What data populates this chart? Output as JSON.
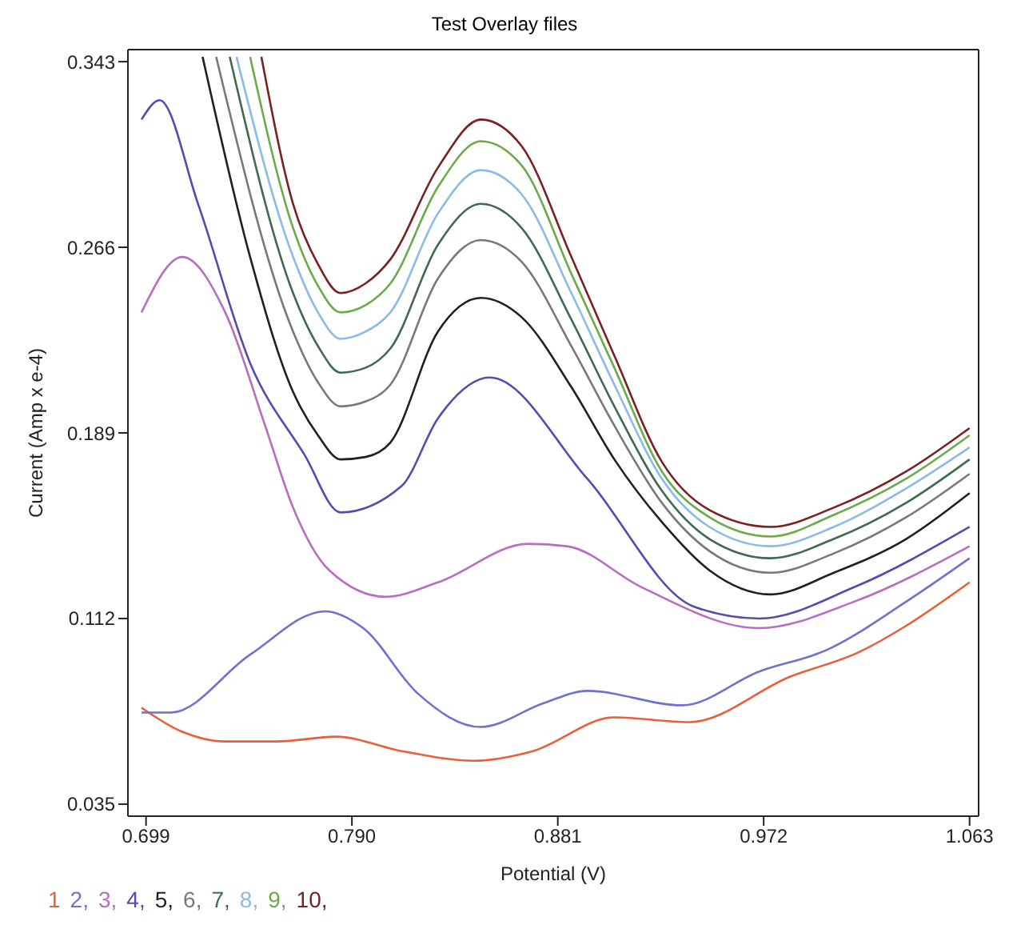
{
  "chart_data": {
    "type": "line",
    "title": "Test Overlay files",
    "xlabel": "Potential (V)",
    "ylabel": "Current (Amp x e-4)",
    "xlim": [
      0.691,
      1.067
    ],
    "xticks": [
      0.699,
      {
        "value": 0.79,
        "label": "0.790"
      },
      0.881,
      0.972,
      1.063
    ],
    "ylim": [
      0.03,
      0.348
    ],
    "yticks": [
      0.343,
      0.266,
      0.189,
      0.112,
      0.035
    ],
    "grid": false,
    "legend": "bottom left",
    "marker": "none",
    "line_style": "solid",
    "series": [
      {
        "name": "1",
        "color": "#e8603a",
        "x": [
          0.697,
          0.715,
          0.734,
          0.757,
          0.783,
          0.812,
          0.844,
          0.87,
          0.906,
          0.939,
          0.984,
          1.014,
          1.035,
          1.054,
          1.063
        ],
        "values": [
          0.075,
          0.065,
          0.061,
          0.061,
          0.063,
          0.057,
          0.053,
          0.057,
          0.071,
          0.069,
          0.088,
          0.098,
          0.109,
          0.121,
          0.127
        ]
      },
      {
        "name": "2,",
        "color": "#6f70d0",
        "x": [
          0.697,
          0.71,
          0.745,
          0.778,
          0.795,
          0.819,
          0.847,
          0.875,
          0.894,
          0.936,
          0.97,
          1.0,
          1.035,
          1.063
        ],
        "values": [
          0.073,
          0.073,
          0.097,
          0.115,
          0.108,
          0.081,
          0.067,
          0.077,
          0.082,
          0.076,
          0.09,
          0.099,
          0.119,
          0.137
        ]
      },
      {
        "name": "3,",
        "color": "#b86ec0",
        "x": [
          0.697,
          0.715,
          0.734,
          0.752,
          0.764,
          0.78,
          0.805,
          0.828,
          0.868,
          0.885,
          0.918,
          0.97,
          1.012,
          1.063
        ],
        "values": [
          0.239,
          0.262,
          0.239,
          0.191,
          0.158,
          0.132,
          0.121,
          0.127,
          0.143,
          0.142,
          0.125,
          0.108,
          0.119,
          0.142
        ]
      },
      {
        "name": "4,",
        "color": "#5848b0",
        "x": [
          0.697,
          0.705,
          0.722,
          0.745,
          0.769,
          0.785,
          0.812,
          0.828,
          0.851,
          0.894,
          0.941,
          0.97,
          1.012,
          1.063
        ],
        "values": [
          0.319,
          0.327,
          0.284,
          0.218,
          0.18,
          0.156,
          0.167,
          0.195,
          0.212,
          0.17,
          0.117,
          0.112,
          0.125,
          0.15
        ]
      },
      {
        "name": "5,",
        "color": "#202020",
        "x": [
          0.724,
          0.745,
          0.764,
          0.775,
          0.785,
          0.796,
          0.807,
          0.828,
          0.847,
          0.865,
          0.887,
          0.906,
          0.927,
          0.948,
          0.975,
          1.003,
          1.035,
          1.063
        ],
        "values": [
          0.345,
          0.262,
          0.206,
          0.188,
          0.178,
          0.179,
          0.185,
          0.231,
          0.245,
          0.237,
          0.208,
          0.178,
          0.152,
          0.132,
          0.122,
          0.131,
          0.145,
          0.164
        ]
      },
      {
        "name": "6,",
        "color": "#787878",
        "x": [
          0.73,
          0.764,
          0.775,
          0.785,
          0.796,
          0.807,
          0.828,
          0.847,
          0.865,
          0.887,
          0.906,
          0.927,
          0.948,
          0.975,
          1.003,
          1.035,
          1.063
        ],
        "values": [
          0.345,
          0.231,
          0.21,
          0.2,
          0.202,
          0.209,
          0.253,
          0.269,
          0.26,
          0.225,
          0.192,
          0.16,
          0.14,
          0.131,
          0.139,
          0.154,
          0.172
        ]
      },
      {
        "name": "7,",
        "color": "#3f6a50",
        "x": [
          0.736,
          0.764,
          0.775,
          0.785,
          0.796,
          0.807,
          0.828,
          0.847,
          0.865,
          0.887,
          0.906,
          0.927,
          0.948,
          0.975,
          1.003,
          1.035,
          1.063
        ],
        "values": [
          0.345,
          0.247,
          0.225,
          0.214,
          0.216,
          0.224,
          0.267,
          0.284,
          0.274,
          0.236,
          0.2,
          0.165,
          0.145,
          0.137,
          0.145,
          0.16,
          0.178
        ]
      },
      {
        "name": "8,",
        "color": "#88bbe8",
        "x": [
          0.739,
          0.764,
          0.775,
          0.785,
          0.796,
          0.807,
          0.828,
          0.847,
          0.865,
          0.887,
          0.906,
          0.927,
          0.948,
          0.975,
          1.003,
          1.035,
          1.063
        ],
        "values": [
          0.345,
          0.262,
          0.239,
          0.228,
          0.231,
          0.239,
          0.28,
          0.298,
          0.288,
          0.247,
          0.209,
          0.17,
          0.15,
          0.142,
          0.15,
          0.166,
          0.183
        ]
      },
      {
        "name": "9,",
        "color": "#6aaa48",
        "x": [
          0.745,
          0.764,
          0.775,
          0.785,
          0.796,
          0.807,
          0.828,
          0.847,
          0.865,
          0.887,
          0.906,
          0.927,
          0.948,
          0.975,
          1.003,
          1.035,
          1.063
        ],
        "values": [
          0.345,
          0.274,
          0.25,
          0.239,
          0.242,
          0.251,
          0.291,
          0.31,
          0.3,
          0.255,
          0.216,
          0.173,
          0.154,
          0.146,
          0.155,
          0.17,
          0.188
        ]
      },
      {
        "name": "10,",
        "color": "#7a2020",
        "x": [
          0.75,
          0.764,
          0.775,
          0.785,
          0.796,
          0.807,
          0.828,
          0.847,
          0.865,
          0.887,
          0.906,
          0.927,
          0.948,
          0.975,
          1.003,
          1.035,
          1.063
        ],
        "values": [
          0.345,
          0.284,
          0.259,
          0.247,
          0.251,
          0.261,
          0.299,
          0.319,
          0.308,
          0.262,
          0.221,
          0.177,
          0.157,
          0.15,
          0.158,
          0.173,
          0.191
        ]
      }
    ]
  }
}
